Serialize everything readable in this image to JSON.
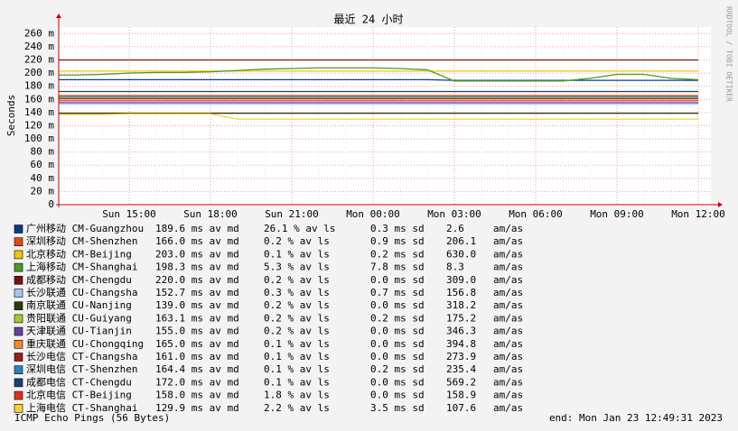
{
  "chart_data": {
    "type": "line",
    "title": "最近 24 小时",
    "y_label": "Seconds",
    "side_label": "RRDTOOL / TOBI OETIKER",
    "footer_left": "ICMP Echo Pings (56 Bytes)",
    "footer_right": "end: Mon Jan 23 12:49:31 2023",
    "grid": true,
    "ylim": [
      0,
      0.27
    ],
    "yticks": [
      0,
      {
        "value": 0.02,
        "label": "20 m"
      },
      {
        "value": 0.04,
        "label": "40 m"
      },
      {
        "value": 0.06,
        "label": "60 m"
      },
      {
        "value": 0.08,
        "label": "80 m"
      },
      {
        "value": 0.1,
        "label": "100 m"
      },
      {
        "value": 0.12,
        "label": "120 m"
      },
      {
        "value": 0.14,
        "label": "140 m"
      },
      {
        "value": 0.16,
        "label": "160 m"
      },
      {
        "value": 0.18,
        "label": "180 m"
      },
      {
        "value": 0.2,
        "label": "200 m"
      },
      {
        "value": 0.22,
        "label": "220 m"
      },
      {
        "value": 0.24,
        "label": "240 m"
      },
      {
        "value": 0.26,
        "label": "260 m"
      }
    ],
    "categories": [
      null,
      null,
      "Sun 15:00",
      null,
      null,
      "Sun 18:00",
      null,
      null,
      "Sun 21:00",
      null,
      null,
      "Mon 00:00",
      null,
      null,
      "Mon 03:00",
      null,
      null,
      "Mon 06:00",
      null,
      null,
      "Mon 09:00",
      null,
      null,
      "Mon 12:00"
    ],
    "series": [
      {
        "name": "广州移动 CM-Guangzhou",
        "color": "#0d3b8c",
        "stats": [
          "189.6 ms av md",
          "26.1 % av ls",
          "0.3 ms sd",
          "2.6",
          "am/as"
        ],
        "values": [
          0.19,
          0.19,
          0.19,
          0.19,
          0.19,
          0.19,
          0.19,
          0.19,
          0.19,
          0.19,
          0.19,
          0.19,
          0.19,
          0.19,
          0.189,
          0.189,
          0.189,
          0.189,
          0.189,
          0.189,
          0.189,
          0.189,
          0.189,
          0.189
        ]
      },
      {
        "name": "深圳移动 CM-Shenzhen",
        "color": "#e8471b",
        "stats": [
          "166.0 ms av md",
          "0.2 % av ls",
          "0.9 ms sd",
          "206.1",
          "am/as"
        ],
        "values": [
          0.166,
          0.166,
          0.166,
          0.166,
          0.166,
          0.166,
          0.166,
          0.166,
          0.166,
          0.166,
          0.166,
          0.166,
          0.166,
          0.166,
          0.166,
          0.166,
          0.166,
          0.166,
          0.166,
          0.166,
          0.166,
          0.166,
          0.166,
          0.166
        ]
      },
      {
        "name": "北京移动 CM-Beijing",
        "color": "#f2c40c",
        "stats": [
          "203.0 ms av md",
          "0.1 % av ls",
          "0.2 ms sd",
          "630.0",
          "am/as"
        ],
        "values": [
          0.203,
          0.203,
          0.203,
          0.203,
          0.203,
          0.203,
          0.203,
          0.203,
          0.203,
          0.203,
          0.203,
          0.203,
          0.203,
          0.203,
          0.203,
          0.203,
          0.203,
          0.203,
          0.203,
          0.203,
          0.203,
          0.203,
          0.203,
          0.203
        ]
      },
      {
        "name": "上海移动 CM-Shanghai",
        "color": "#4c9a26",
        "stats": [
          "198.3 ms av md",
          "5.3 % av ls",
          "7.8 ms sd",
          "8.3",
          "am/as"
        ],
        "values": [
          0.197,
          0.198,
          0.2,
          0.201,
          0.201,
          0.202,
          0.204,
          0.206,
          0.207,
          0.208,
          0.208,
          0.208,
          0.207,
          0.205,
          0.188,
          0.188,
          0.188,
          0.188,
          0.188,
          0.192,
          0.198,
          0.198,
          0.192,
          0.19
        ]
      },
      {
        "name": "成都移动 CM-Chengdu",
        "color": "#7a1010",
        "stats": [
          "220.0 ms av md",
          "0.2 % av ls",
          "0.0 ms sd",
          "309.0",
          "am/as"
        ],
        "values": [
          0.22,
          0.22,
          0.22,
          0.22,
          0.22,
          0.22,
          0.22,
          0.22,
          0.22,
          0.22,
          0.22,
          0.22,
          0.22,
          0.22,
          0.22,
          0.22,
          0.22,
          0.22,
          0.22,
          0.22,
          0.22,
          0.22,
          0.22,
          0.22
        ]
      },
      {
        "name": "长沙联通 CU-Changsha",
        "color": "#9ec9f0",
        "stats": [
          "152.7 ms av md",
          "0.3 % av ls",
          "0.7 ms sd",
          "156.8",
          "am/as"
        ],
        "values": [
          0.153,
          0.153,
          0.153,
          0.153,
          0.153,
          0.153,
          0.153,
          0.153,
          0.153,
          0.153,
          0.153,
          0.153,
          0.153,
          0.153,
          0.153,
          0.153,
          0.153,
          0.153,
          0.153,
          0.153,
          0.153,
          0.153,
          0.153,
          0.153
        ]
      },
      {
        "name": "南京联通 CU-Nanjing",
        "color": "#2d3a0e",
        "stats": [
          "139.0 ms av md",
          "0.2 % av ls",
          "0.0 ms sd",
          "318.2",
          "am/as"
        ],
        "values": [
          0.139,
          0.139,
          0.139,
          0.139,
          0.139,
          0.139,
          0.139,
          0.139,
          0.139,
          0.139,
          0.139,
          0.139,
          0.139,
          0.139,
          0.139,
          0.139,
          0.139,
          0.139,
          0.139,
          0.139,
          0.139,
          0.139,
          0.139,
          0.139
        ]
      },
      {
        "name": "贵阳联通 CU-Guiyang",
        "color": "#a6c930",
        "stats": [
          "163.1 ms av md",
          "0.2 % av ls",
          "0.2 ms sd",
          "175.2",
          "am/as"
        ],
        "values": [
          0.163,
          0.163,
          0.163,
          0.163,
          0.163,
          0.163,
          0.163,
          0.163,
          0.163,
          0.163,
          0.163,
          0.163,
          0.163,
          0.163,
          0.163,
          0.163,
          0.163,
          0.163,
          0.163,
          0.163,
          0.163,
          0.163,
          0.163,
          0.163
        ]
      },
      {
        "name": "天津联通 CU-Tianjin",
        "color": "#6b3fa0",
        "stats": [
          "155.0 ms av md",
          "0.2 % av ls",
          "0.0 ms sd",
          "346.3",
          "am/as"
        ],
        "values": [
          0.155,
          0.155,
          0.155,
          0.155,
          0.155,
          0.155,
          0.155,
          0.155,
          0.155,
          0.155,
          0.155,
          0.155,
          0.155,
          0.155,
          0.155,
          0.155,
          0.155,
          0.155,
          0.155,
          0.155,
          0.155,
          0.155,
          0.155,
          0.155
        ]
      },
      {
        "name": "重庆联通 CU-Chongqing",
        "color": "#f28c28",
        "stats": [
          "165.0 ms av md",
          "0.1 % av ls",
          "0.0 ms sd",
          "394.8",
          "am/as"
        ],
        "values": [
          0.165,
          0.165,
          0.165,
          0.165,
          0.165,
          0.165,
          0.165,
          0.165,
          0.165,
          0.165,
          0.165,
          0.165,
          0.165,
          0.165,
          0.165,
          0.165,
          0.165,
          0.165,
          0.165,
          0.165,
          0.165,
          0.165,
          0.165,
          0.165
        ]
      },
      {
        "name": "长沙电信 CT-Changsha",
        "color": "#9b1b1b",
        "stats": [
          "161.0 ms av md",
          "0.1 % av ls",
          "0.0 ms sd",
          "273.9",
          "am/as"
        ],
        "values": [
          0.161,
          0.161,
          0.161,
          0.161,
          0.161,
          0.161,
          0.161,
          0.161,
          0.161,
          0.161,
          0.161,
          0.161,
          0.161,
          0.161,
          0.161,
          0.161,
          0.161,
          0.161,
          0.161,
          0.161,
          0.161,
          0.161,
          0.161,
          0.161
        ]
      },
      {
        "name": "深圳电信 CT-Shenzhen",
        "color": "#2d7fc1",
        "stats": [
          "164.4 ms av md",
          "0.1 % av ls",
          "0.2 ms sd",
          "235.4",
          "am/as"
        ],
        "values": [
          0.164,
          0.164,
          0.164,
          0.164,
          0.164,
          0.164,
          0.164,
          0.164,
          0.164,
          0.164,
          0.164,
          0.164,
          0.164,
          0.164,
          0.164,
          0.164,
          0.164,
          0.164,
          0.164,
          0.164,
          0.164,
          0.164,
          0.164,
          0.164
        ]
      },
      {
        "name": "成都电信 CT-Chengdu",
        "color": "#1c3f73",
        "stats": [
          "172.0 ms av md",
          "0.1 % av ls",
          "0.0 ms sd",
          "569.2",
          "am/as"
        ],
        "values": [
          0.172,
          0.172,
          0.172,
          0.172,
          0.172,
          0.172,
          0.172,
          0.172,
          0.172,
          0.172,
          0.172,
          0.172,
          0.172,
          0.172,
          0.172,
          0.172,
          0.172,
          0.172,
          0.172,
          0.172,
          0.172,
          0.172,
          0.172,
          0.172
        ]
      },
      {
        "name": "北京电信 CT-Beijing",
        "color": "#e0301e",
        "stats": [
          "158.0 ms av md",
          "1.8 % av ls",
          "0.0 ms sd",
          "158.9",
          "am/as"
        ],
        "values": [
          0.158,
          0.158,
          0.158,
          0.158,
          0.158,
          0.158,
          0.158,
          0.158,
          0.158,
          0.158,
          0.158,
          0.158,
          0.158,
          0.158,
          0.158,
          0.158,
          0.158,
          0.158,
          0.158,
          0.158,
          0.158,
          0.158,
          0.158,
          0.158
        ]
      },
      {
        "name": "上海电信 CT-Shanghai",
        "color": "#f2d434",
        "stats": [
          "129.9 ms av md",
          "2.2 % av ls",
          "3.5 ms sd",
          "107.6",
          "am/as"
        ],
        "values": [
          0.137,
          0.137,
          0.138,
          0.138,
          0.138,
          0.138,
          0.13,
          0.13,
          0.13,
          0.13,
          0.13,
          0.13,
          0.13,
          0.13,
          0.13,
          0.13,
          0.13,
          0.13,
          0.13,
          0.13,
          0.13,
          0.13,
          0.13,
          0.13
        ]
      }
    ]
  }
}
